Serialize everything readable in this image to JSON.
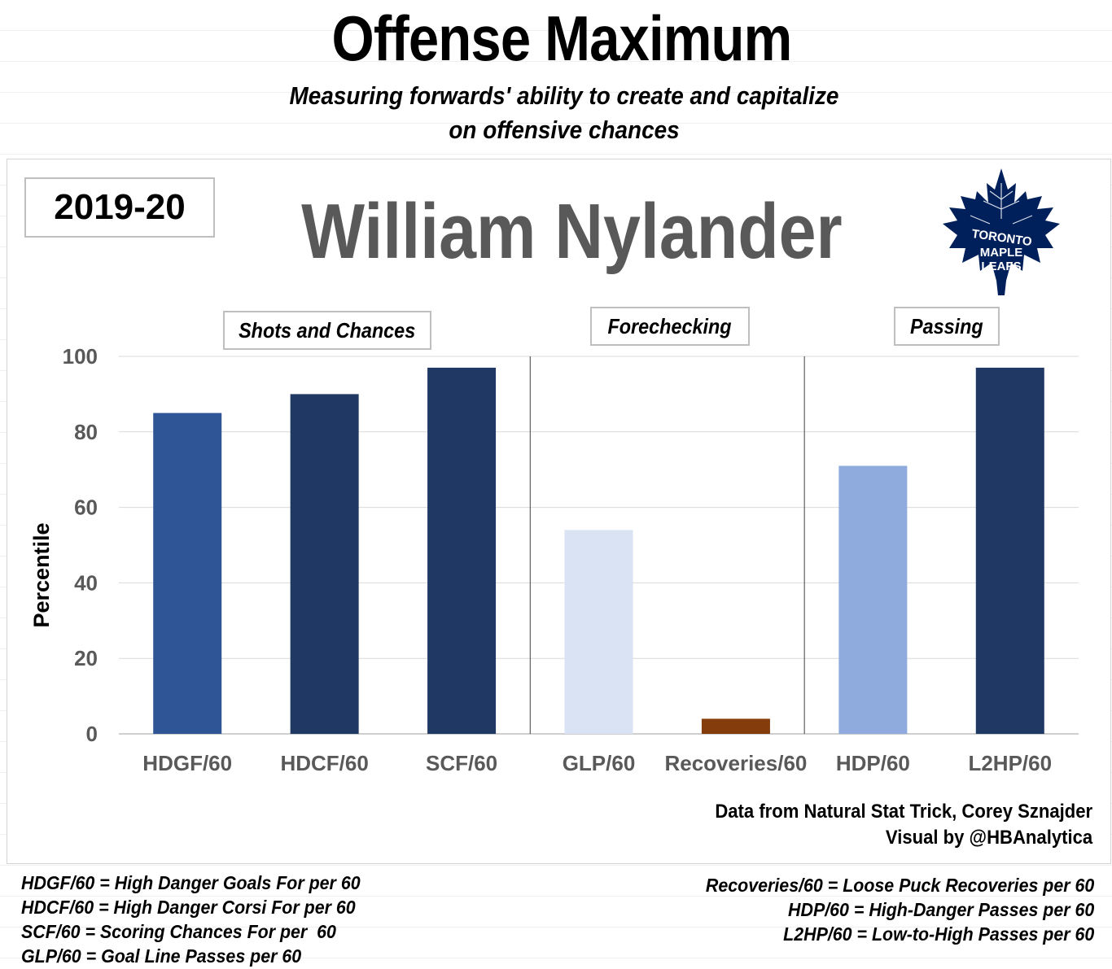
{
  "header": {
    "title": "Offense Maximum",
    "subtitle_line1": "Measuring forwards' ability to create and capitalize",
    "subtitle_line2": "on offensive chances"
  },
  "season": "2019-20",
  "player": "William Nylander",
  "logo": {
    "text_line1": "TORONTO",
    "text_line2": "MAPLE",
    "text_line3": "LEAFS",
    "color": "#00205B"
  },
  "groups": [
    {
      "label": "Shots and Chances"
    },
    {
      "label": "Forechecking"
    },
    {
      "label": "Passing"
    }
  ],
  "chart_data": {
    "type": "bar",
    "categories": [
      "HDGF/60",
      "HDCF/60",
      "SCF/60",
      "GLP/60",
      "Recoveries/60",
      "HDP/60",
      "L2HP/60"
    ],
    "values": [
      85,
      90,
      97,
      54,
      4,
      71,
      97
    ],
    "colors": [
      "#2F5597",
      "#203864",
      "#203864",
      "#DAE3F3",
      "#843C0C",
      "#8FAADC",
      "#203864"
    ],
    "ylabel": "Percentile",
    "ylim": [
      0,
      100
    ],
    "yticks": [
      0,
      20,
      40,
      60,
      80,
      100
    ],
    "grid": true
  },
  "credits": {
    "line1": "Data from Natural Stat Trick, Corey Sznajder",
    "line2": "Visual by @HBAnalytica"
  },
  "definitions": {
    "left": [
      "HDGF/60 = High Danger Goals For per 60",
      "HDCF/60 = High Danger Corsi For per 60",
      "SCF/60 = Scoring Chances For per  60",
      "GLP/60 = Goal Line Passes per 60"
    ],
    "right": [
      "Recoveries/60 = Loose Puck Recoveries per 60",
      "HDP/60 = High-Danger Passes per 60",
      "L2HP/60 = Low-to-High Passes per 60"
    ]
  }
}
